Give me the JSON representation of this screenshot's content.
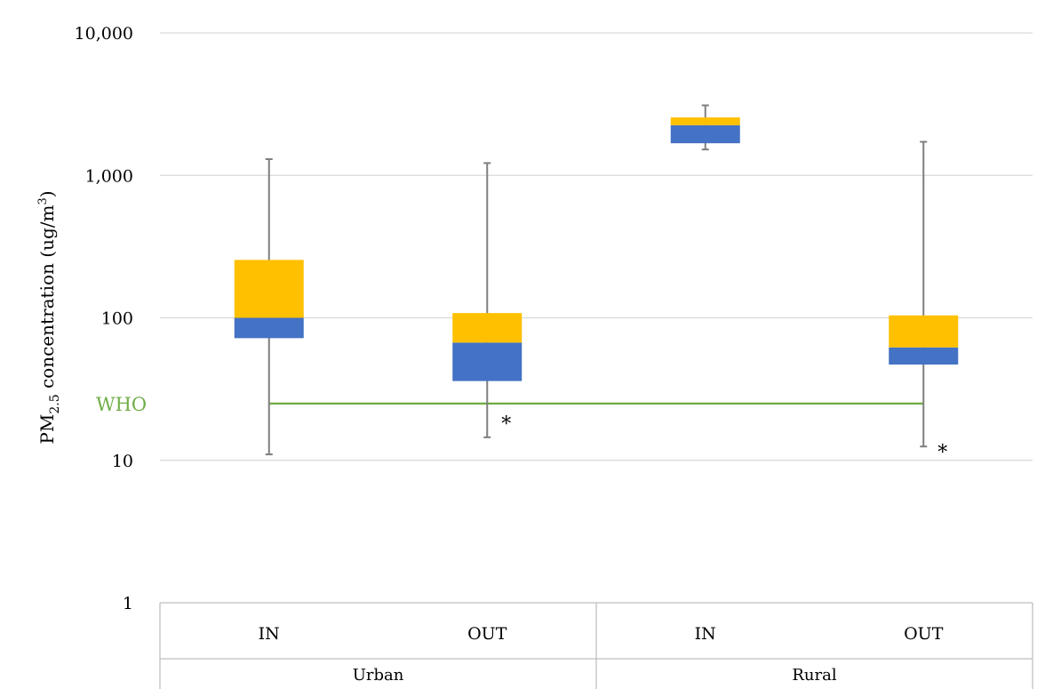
{
  "chart_data": {
    "type": "box",
    "y_scale": "log",
    "ylim": [
      1,
      10000
    ],
    "y_ticks": [
      {
        "value": 1,
        "label": "1"
      },
      {
        "value": 10,
        "label": "10"
      },
      {
        "value": 100,
        "label": "100"
      },
      {
        "value": 1000,
        "label": "1,000"
      },
      {
        "value": 10000,
        "label": "10,000"
      }
    ],
    "ylabel": {
      "prefix": "PM",
      "subscript": "2.5",
      "middle": " concentration (ug/m",
      "superscript": "3",
      "suffix": ")"
    },
    "groups": [
      "Urban",
      "Rural"
    ],
    "boxes": [
      {
        "group": "Urban",
        "category": "IN",
        "min": 11,
        "q1": 72,
        "median": 100,
        "q3": 255,
        "max": 1300,
        "outlier_marker": ""
      },
      {
        "group": "Urban",
        "category": "OUT",
        "min": 14.5,
        "q1": 36,
        "median": 67,
        "q3": 108,
        "max": 1220,
        "outlier_marker": "*"
      },
      {
        "group": "Rural",
        "category": "IN",
        "min": 1520,
        "q1": 1680,
        "median": 2250,
        "q3": 2550,
        "max": 3100,
        "outlier_marker": ""
      },
      {
        "group": "Rural",
        "category": "OUT",
        "min": 12.5,
        "q1": 47,
        "median": 62,
        "q3": 104,
        "max": 1720,
        "outlier_marker": "*"
      }
    ],
    "reference_line": {
      "label": "WHO",
      "value": 25,
      "color": "#70ad47"
    },
    "colors": {
      "lower_box": "#4472c4",
      "upper_box": "#ffc000",
      "whisker": "#7f7f7f",
      "grid": "#d9d9d9",
      "axis": "#bfbfbf"
    },
    "grid": true
  }
}
